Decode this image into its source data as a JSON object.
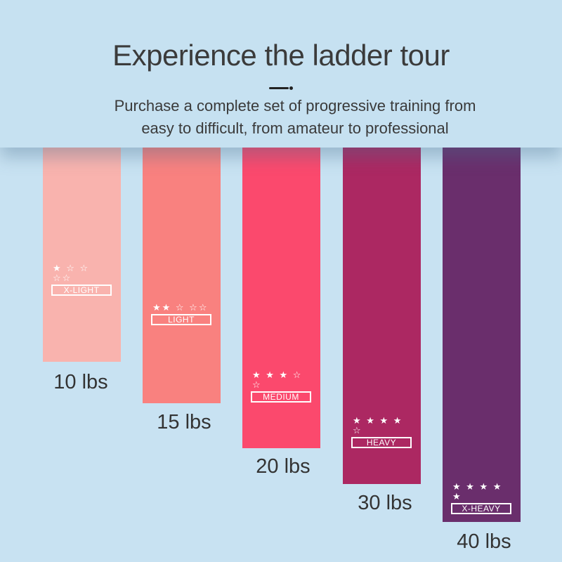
{
  "header": {
    "title": "Experience the ladder tour",
    "subtitle_line1": "Purchase a complete set of progressive training from",
    "subtitle_line2": "easy to difficult, from amateur to professional"
  },
  "bands": [
    {
      "weight": "10 lbs",
      "level": "X-LIGHT",
      "stars": "★ ☆ ☆ ☆☆",
      "rating": 1,
      "color": "#f9b3ae"
    },
    {
      "weight": "15 lbs",
      "level": "LIGHT",
      "stars": "★★ ☆ ☆☆",
      "rating": 2,
      "color": "#f9817f"
    },
    {
      "weight": "20 lbs",
      "level": "MEDIUM",
      "stars": "★ ★ ★ ☆ ☆",
      "rating": 3,
      "color": "#fb496d"
    },
    {
      "weight": "30 lbs",
      "level": "HEAVY",
      "stars": "★ ★ ★ ★ ☆",
      "rating": 4,
      "color": "#ac2862"
    },
    {
      "weight": "40 lbs",
      "level": "X-HEAVY",
      "stars": "★ ★ ★ ★ ★",
      "rating": 5,
      "color": "#6a2e6c"
    }
  ]
}
